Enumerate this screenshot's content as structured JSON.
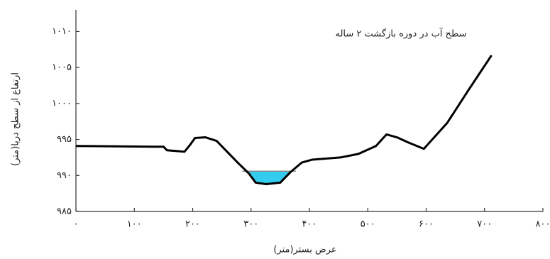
{
  "chart_data": {
    "type": "line",
    "annotation": "سطح آب در دوره بازگشت ۲ ساله",
    "x_label": "عرض بستر(متر)",
    "y_label": "ارتفاع از سطح دریا(متر)",
    "x": [
      0,
      131,
      150,
      156,
      186,
      196,
      204,
      222,
      241,
      259,
      277,
      296,
      308,
      326,
      350,
      368,
      387,
      405,
      453,
      484,
      514,
      532,
      550,
      569,
      596,
      636,
      672,
      712
    ],
    "values": [
      994.1,
      994,
      994,
      993.5,
      993.3,
      994.3,
      995.2,
      995.3,
      994.8,
      993.3,
      991.8,
      990.3,
      989,
      988.8,
      989,
      990.5,
      991.8,
      992.2,
      992.5,
      993,
      994.1,
      995.7,
      995.3,
      994.6,
      993.7,
      997.3,
      1001.8,
      1006.7
    ],
    "color": "#000000",
    "water_level": 990.6,
    "water_color": "#33ccee",
    "xlim": [
      0,
      800
    ],
    "ylim": [
      985,
      1013
    ],
    "xticks": [
      {
        "value": 0,
        "label": "۰"
      },
      {
        "value": 100,
        "label": "۱۰۰"
      },
      {
        "value": 200,
        "label": "۲۰۰"
      },
      {
        "value": 300,
        "label": "۳۰۰"
      },
      {
        "value": 400,
        "label": "۴۰۰"
      },
      {
        "value": 500,
        "label": "۵۰۰"
      },
      {
        "value": 600,
        "label": "۶۰۰"
      },
      {
        "value": 700,
        "label": "۷۰۰"
      },
      {
        "value": 800,
        "label": "۸۰۰"
      }
    ],
    "yticks": [
      {
        "value": 985,
        "label": "۹۸۵"
      },
      {
        "value": 990,
        "label": "۹۹۰"
      },
      {
        "value": 995,
        "label": "۹۹۵"
      },
      {
        "value": 1000,
        "label": "۱۰۰۰"
      },
      {
        "value": 1005,
        "label": "۱۰۰۵"
      },
      {
        "value": 1010,
        "label": "۱۰۱۰"
      }
    ]
  }
}
